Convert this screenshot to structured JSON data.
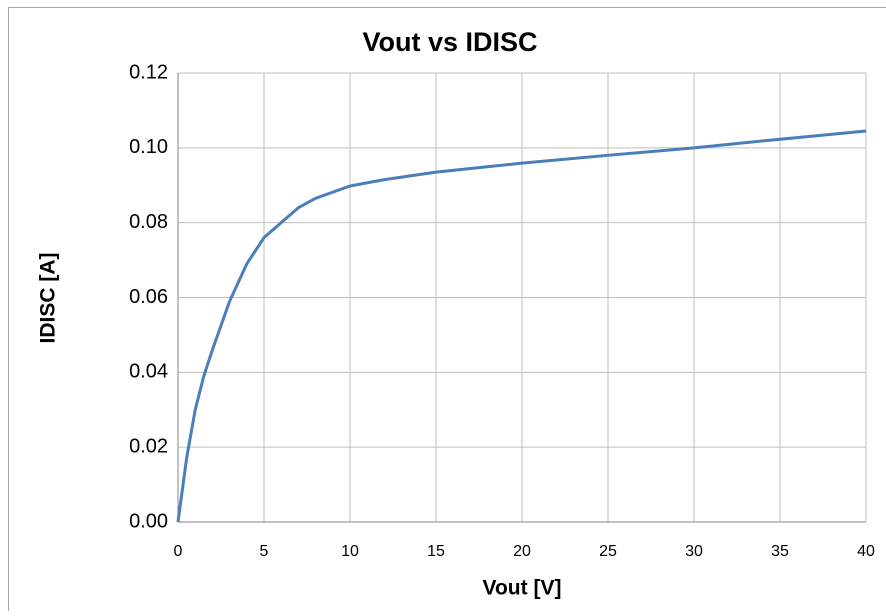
{
  "chart_data": {
    "type": "line",
    "title": "Vout vs IDISC",
    "xlabel": "Vout [V]",
    "ylabel": "IDISC [A]",
    "x": [
      0,
      0.5,
      1,
      1.5,
      2,
      3,
      4,
      5,
      6,
      7,
      8,
      10,
      12,
      15,
      20,
      25,
      30,
      35,
      40
    ],
    "series": [
      {
        "name": "IDISC",
        "color": "#4a7ebb",
        "values": [
          0,
          0.017,
          0.03,
          0.039,
          0.046,
          0.059,
          0.069,
          0.076,
          0.08,
          0.084,
          0.0865,
          0.0898,
          0.0915,
          0.0935,
          0.0959,
          0.098,
          0.1,
          0.1023,
          0.1045
        ]
      }
    ],
    "xlim": [
      0,
      40
    ],
    "xticks": [
      0,
      5,
      10,
      15,
      20,
      25,
      30,
      35,
      40
    ],
    "ylim": [
      0,
      0.12
    ],
    "yticks": [
      {
        "value": 0,
        "label": "0.00"
      },
      0.02,
      0.04,
      0.06,
      0.08,
      {
        "value": 0.1,
        "label": "0.10"
      },
      0.12
    ],
    "grid": true
  }
}
